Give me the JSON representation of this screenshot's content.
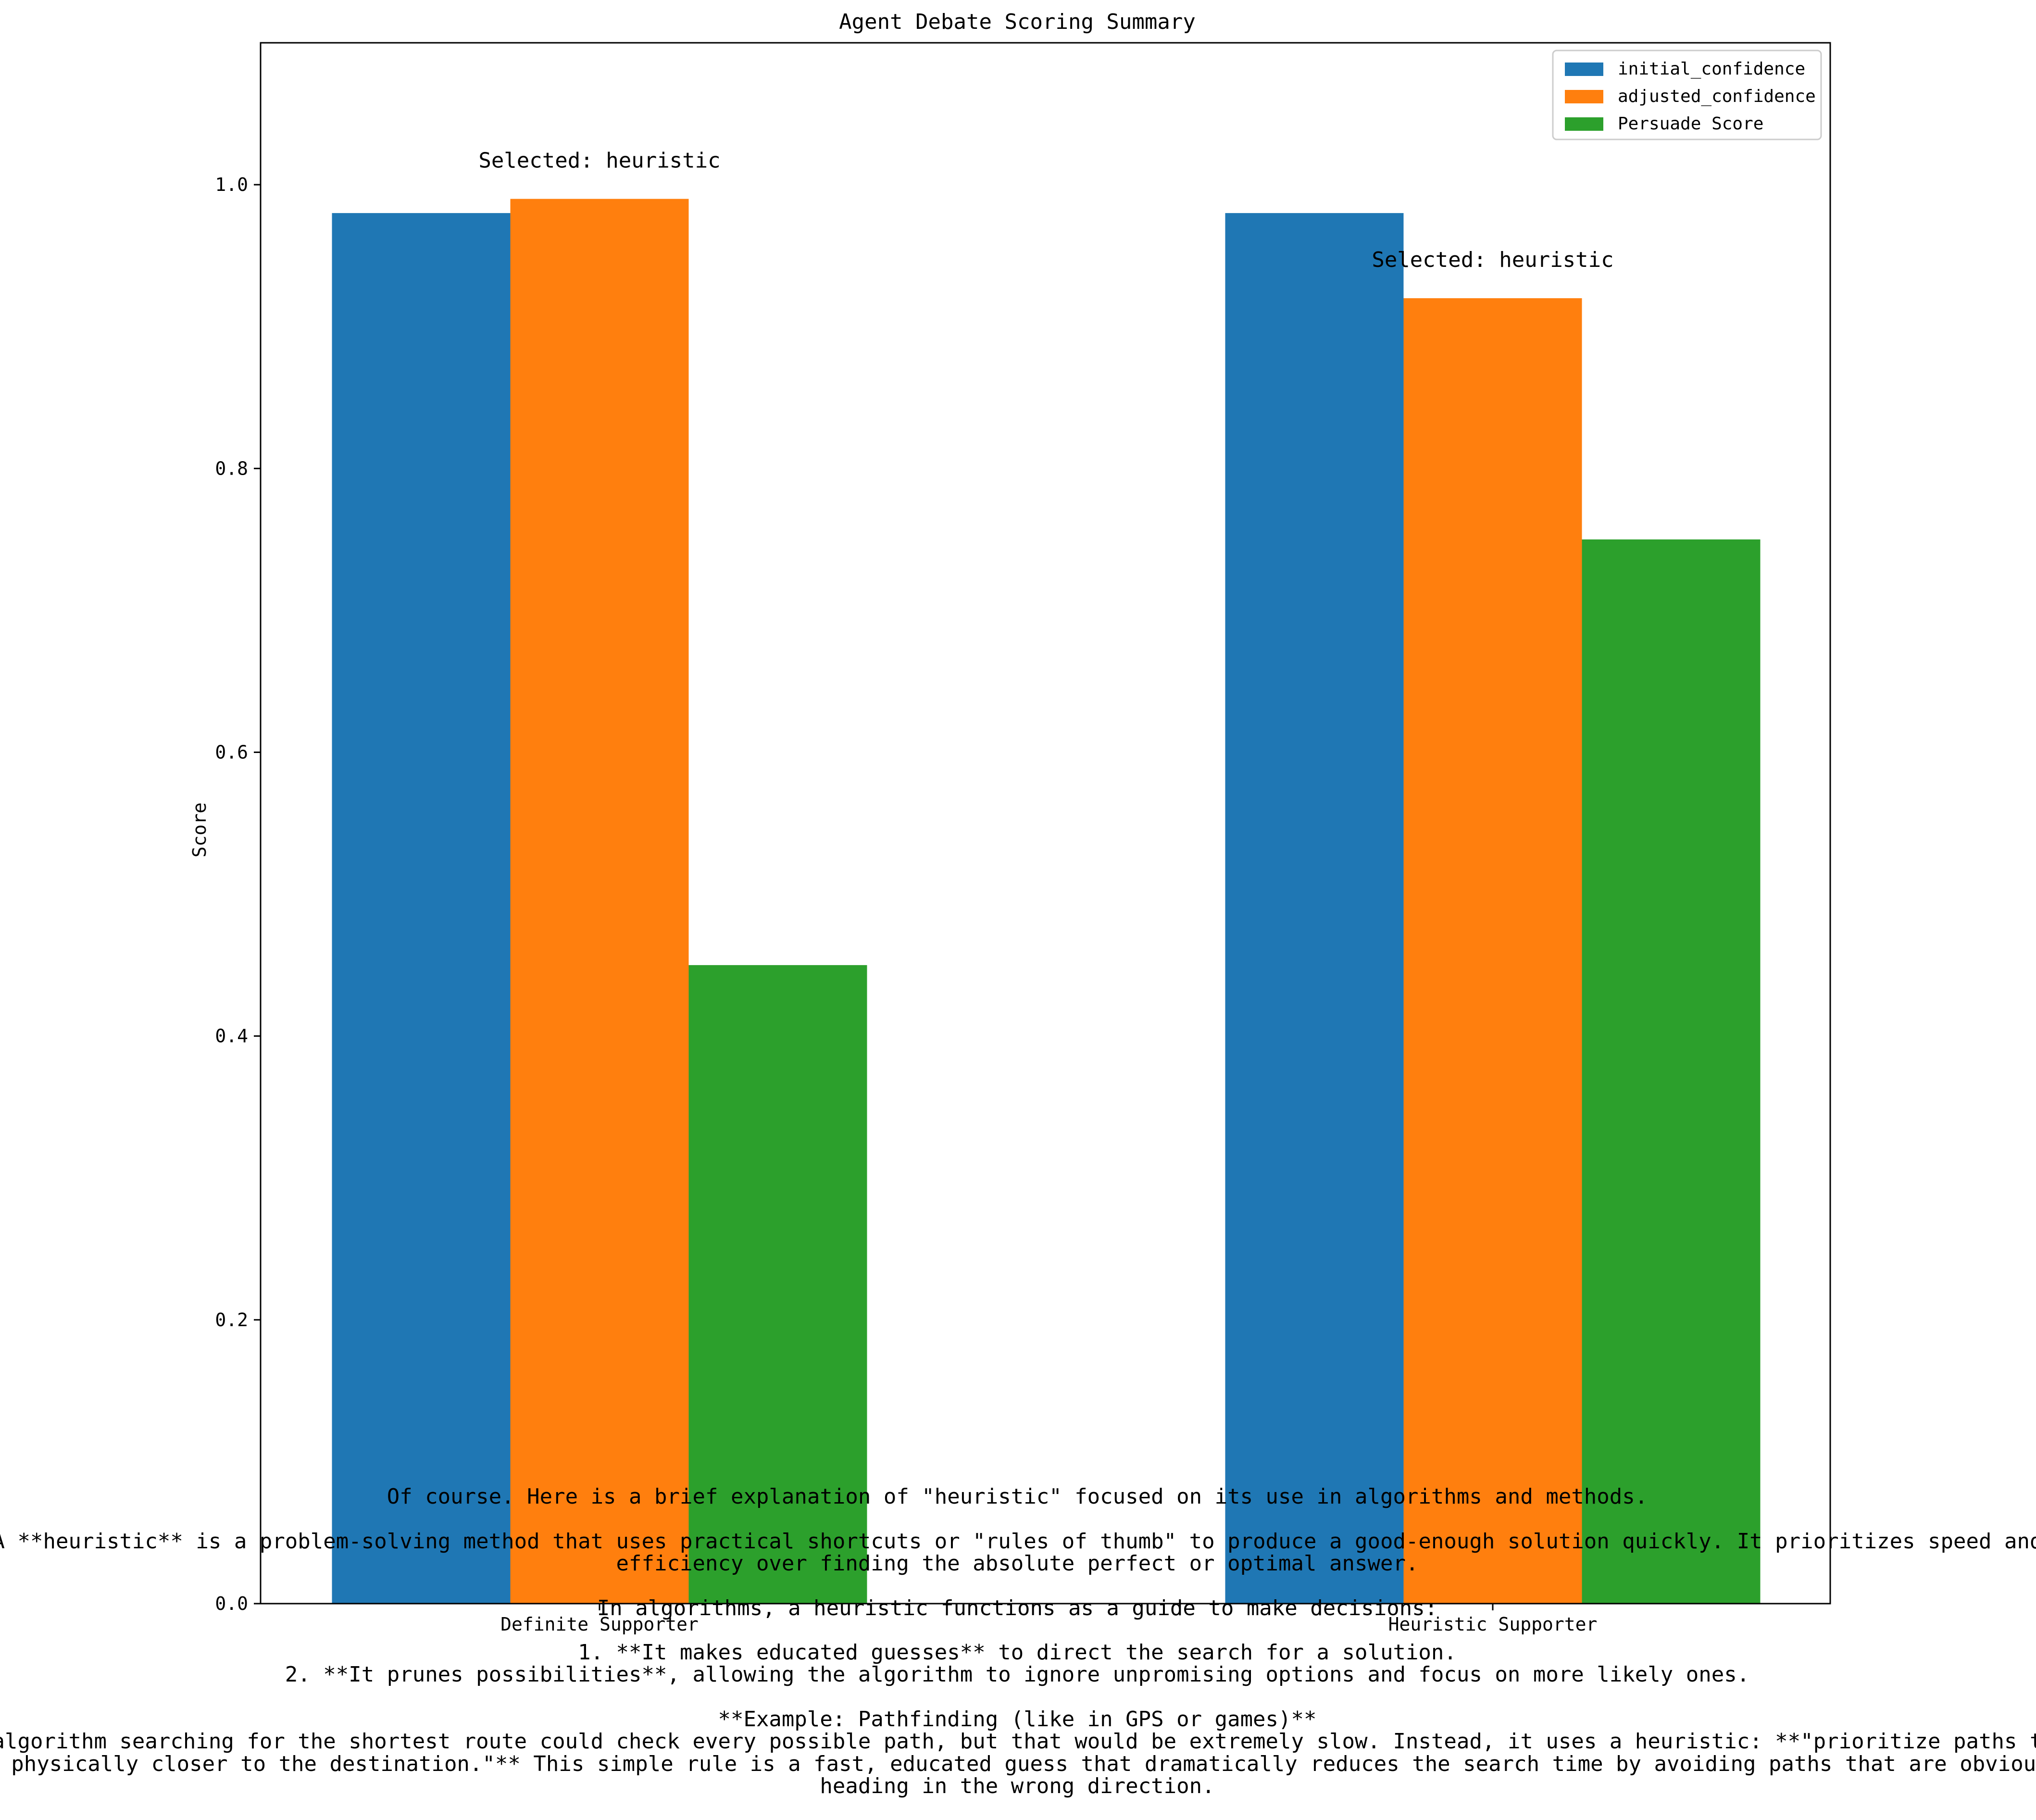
{
  "chart_data": {
    "type": "bar",
    "title": "Agent Debate Scoring Summary",
    "xlabel": "",
    "ylabel": "Score",
    "ylim": [
      0,
      1.1
    ],
    "yticks": [
      "0.0",
      "0.2",
      "0.4",
      "0.6",
      "0.8",
      "1.0"
    ],
    "categories": [
      "Definite Supporter",
      "Heuristic Supporter"
    ],
    "series": [
      {
        "name": "initial_confidence",
        "color": "#1f77b4",
        "values": [
          0.98,
          0.98
        ]
      },
      {
        "name": "adjusted_confidence",
        "color": "#ff7f0e",
        "values": [
          0.99,
          0.92
        ]
      },
      {
        "name": "Persuade Score",
        "color": "#2ca02c",
        "values": [
          0.45,
          0.75
        ]
      }
    ],
    "annotations": [
      "Selected: heuristic",
      "Selected: heuristic"
    ],
    "legend": "top-right",
    "grid": false
  },
  "explanation_lines": [
    "Of course. Here is a brief explanation of \"heuristic\" focused on its use in algorithms and methods.",
    "",
    "A **heuristic** is a problem-solving method that uses practical shortcuts or \"rules of thumb\" to produce a good-enough solution quickly. It prioritizes speed and",
    "efficiency over finding the absolute perfect or optimal answer.",
    "",
    "In algorithms, a heuristic functions as a guide to make decisions:",
    "",
    "1.  **It makes educated guesses** to direct the search for a solution.",
    "2.  **It prunes possibilities**, allowing the algorithm to ignore unpromising options and focus on more likely ones.",
    "",
    "**Example: Pathfinding (like in GPS or games)**",
    "An algorithm searching for the shortest route could check every possible path, but that would be extremely slow. Instead, it uses a heuristic: **\"prioritize paths that",
    "get physically closer to the destination.\"** This simple rule is a fast, educated guess that dramatically reduces the search time by avoiding paths that are obviously",
    "heading in the wrong direction."
  ]
}
